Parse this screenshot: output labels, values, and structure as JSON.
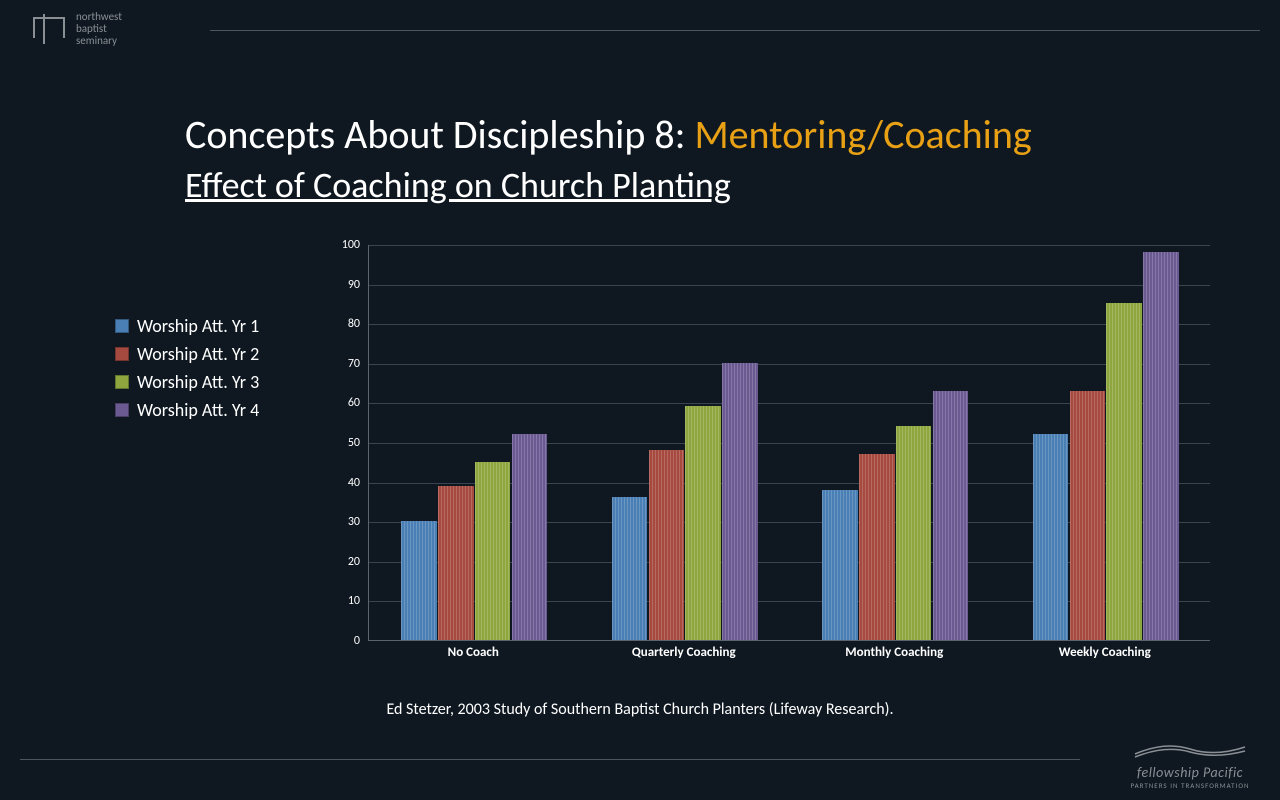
{
  "top_logo": {
    "lines": [
      "northwest",
      "baptist",
      "seminary"
    ]
  },
  "title": {
    "prefix": "Concepts About Discipleship 8: ",
    "accent": "Mentoring/Coaching",
    "subtitle": "Effect of Coaching on Church Planting",
    "prefix_color": "#ffffff",
    "accent_color": "#e8a015",
    "fontsize_line1": 40,
    "fontsize_line2": 36
  },
  "legend": {
    "items": [
      {
        "label": "Worship Att. Yr 1",
        "color": "#4a7fb5"
      },
      {
        "label": "Worship Att. Yr 2",
        "color": "#a64a3f"
      },
      {
        "label": "Worship Att. Yr 3",
        "color": "#8fa63f"
      },
      {
        "label": "Worship Att. Yr 4",
        "color": "#6b5a92"
      }
    ]
  },
  "chart": {
    "type": "bar",
    "ylim": [
      0,
      100
    ],
    "ytick_step": 10,
    "background_color": "#0f1821",
    "grid_color": "#3a4450",
    "axis_color": "#5a6470",
    "tick_fontsize": 12,
    "xlabel_fontsize": 13,
    "bar_stripe": true,
    "group_gap_pct": 30,
    "bar_gap_pct": 4,
    "categories": [
      "No Coach",
      "Quarterly Coaching",
      "Monthly Coaching",
      "Weekly Coaching"
    ],
    "series": [
      {
        "name": "Worship Att. Yr 1",
        "color": "#4a7fb5",
        "values": [
          30,
          36,
          38,
          52
        ]
      },
      {
        "name": "Worship Att. Yr 2",
        "color": "#a64a3f",
        "values": [
          39,
          48,
          47,
          63
        ]
      },
      {
        "name": "Worship Att. Yr 3",
        "color": "#8fa63f",
        "values": [
          45,
          59,
          54,
          85
        ]
      },
      {
        "name": "Worship Att. Yr 4",
        "color": "#6b5a92",
        "values": [
          52,
          70,
          63,
          98
        ]
      }
    ]
  },
  "citation": "Ed Stetzer, 2003 Study of Southern Baptist Church Planters (Lifeway Research).",
  "bottom_logo": {
    "name": "fellowship Pacific",
    "sub": "PARTNERS IN TRANSFORMATION"
  }
}
